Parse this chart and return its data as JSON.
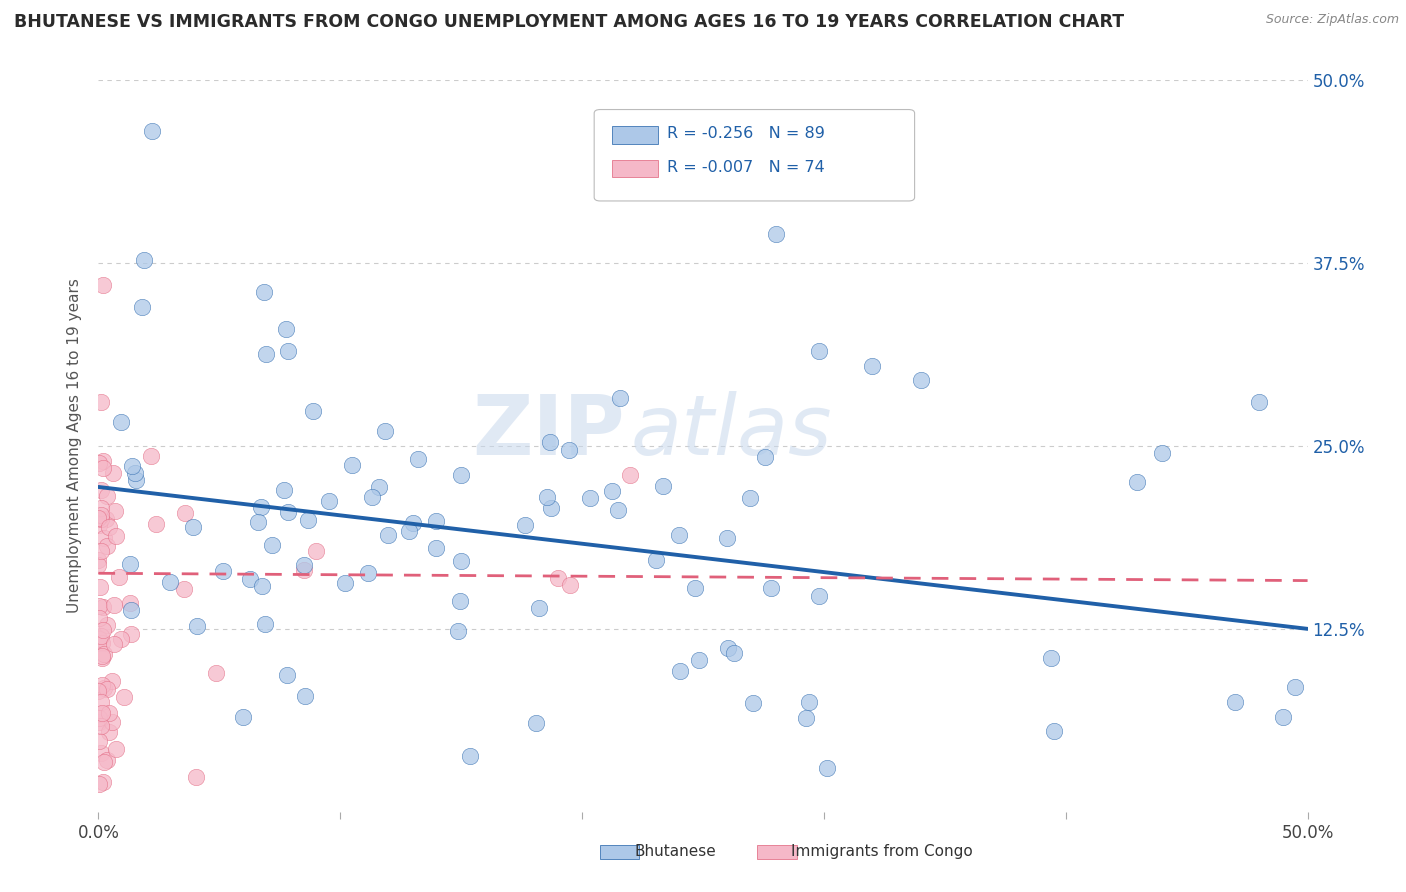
{
  "title": "BHUTANESE VS IMMIGRANTS FROM CONGO UNEMPLOYMENT AMONG AGES 16 TO 19 YEARS CORRELATION CHART",
  "source": "Source: ZipAtlas.com",
  "ylabel": "Unemployment Among Ages 16 to 19 years",
  "xlim": [
    0.0,
    0.5
  ],
  "ylim": [
    0.0,
    0.5
  ],
  "ytick_vals": [
    0.125,
    0.25,
    0.375,
    0.5
  ],
  "ytick_labels_right": [
    "12.5%",
    "25.0%",
    "37.5%",
    "50.0%"
  ],
  "xtick_vals": [
    0.0,
    0.1,
    0.2,
    0.3,
    0.4,
    0.5
  ],
  "xtick_labels": [
    "0.0%",
    "",
    "",
    "",
    "",
    "50.0%"
  ],
  "legend_entries": [
    {
      "label": "Bhutanese",
      "R": -0.256,
      "N": 89,
      "dot_color": "#adc8e8",
      "line_color": "#2060a8"
    },
    {
      "label": "Immigrants from Congo",
      "R": -0.007,
      "N": 74,
      "dot_color": "#f5b8c8",
      "line_color": "#e0607a"
    }
  ],
  "watermark_zip": "ZIP",
  "watermark_atlas": "atlas",
  "background_color": "#ffffff",
  "grid_color": "#cccccc",
  "title_color": "#2b2b2b",
  "bhu_trend_x": [
    0.0,
    0.5
  ],
  "bhu_trend_y": [
    0.222,
    0.125
  ],
  "congo_trend_x": [
    0.0,
    0.5
  ],
  "congo_trend_y": [
    0.163,
    0.158
  ]
}
